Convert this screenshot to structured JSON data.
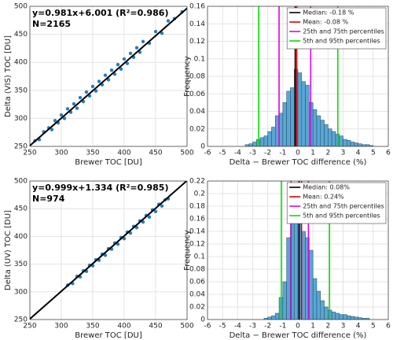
{
  "chart_data": [
    {
      "type": "scatter",
      "xlabel": "Brewer TOC [DU]",
      "ylabel": "Delta (VIS) TOC [DU]",
      "annotations": [
        "y=0.981x+6.001 (R²=0.986)",
        "N=2165"
      ],
      "xlim": [
        250,
        500
      ],
      "ylim": [
        250,
        500
      ],
      "xticks": [
        250,
        300,
        350,
        400,
        450,
        500
      ],
      "yticks": [
        250,
        300,
        350,
        400,
        450,
        500
      ],
      "grid": true,
      "color": "#2b7bbd",
      "x": [
        258,
        265,
        272,
        280,
        285,
        290,
        295,
        300,
        305,
        310,
        315,
        320,
        325,
        330,
        335,
        340,
        345,
        350,
        355,
        360,
        365,
        370,
        375,
        380,
        385,
        390,
        395,
        400,
        405,
        410,
        415,
        420,
        425,
        430,
        440,
        450,
        460,
        470,
        480,
        492
      ],
      "values": [
        260,
        262,
        276,
        283,
        280,
        296,
        292,
        306,
        300,
        317,
        311,
        326,
        318,
        337,
        330,
        347,
        340,
        357,
        349,
        366,
        360,
        377,
        369,
        386,
        379,
        396,
        388,
        406,
        398,
        416,
        409,
        426,
        418,
        437,
        434,
        455,
        452,
        474,
        478,
        490
      ],
      "fit_line": {
        "x": [
          250,
          500
        ],
        "y": [
          251.25,
          496.5
        ]
      }
    },
    {
      "type": "histogram",
      "xlabel": "Delta − Brewer TOC difference (%)",
      "ylabel": "Frequency",
      "xlim": [
        -6,
        6
      ],
      "ylim": [
        0,
        0.16
      ],
      "xticks": [
        -6,
        -5,
        -4,
        -3,
        -2,
        -1,
        0,
        1,
        2,
        3,
        4,
        5,
        6
      ],
      "yticks": [
        0,
        0.02,
        0.04,
        0.06,
        0.08,
        0.1,
        0.12,
        0.14,
        0.16
      ],
      "grid": true,
      "color": "#5aa6d2",
      "bins": [
        -3.5,
        -3.25,
        -3,
        -2.75,
        -2.5,
        -2.25,
        -2,
        -1.75,
        -1.5,
        -1.25,
        -1,
        -0.75,
        -0.5,
        -0.25,
        0,
        0.25,
        0.5,
        0.75,
        1,
        1.25,
        1.5,
        1.75,
        2,
        2.25,
        2.5,
        2.75,
        3,
        3.25,
        3.5,
        3.75,
        4,
        4.25,
        4.5,
        4.75,
        5
      ],
      "values": [
        0.002,
        0.003,
        0.005,
        0.008,
        0.01,
        0.012,
        0.017,
        0.022,
        0.035,
        0.038,
        0.05,
        0.063,
        0.067,
        0.088,
        0.084,
        0.074,
        0.07,
        0.05,
        0.042,
        0.035,
        0.03,
        0.025,
        0.02,
        0.017,
        0.014,
        0.012,
        0.008,
        0.007,
        0.005,
        0.004,
        0.003,
        0.002,
        0.002,
        0.001
      ],
      "vlines": [
        {
          "name": "Median: -0.18 %",
          "color": "#000000",
          "values": [
            -0.18
          ]
        },
        {
          "name": "Mean: -0.08 %",
          "color": "#e00000",
          "values": [
            -0.08
          ]
        },
        {
          "name": "25th and 75th percentiles",
          "color": "#e000e0",
          "values": [
            -1.25,
            0.85
          ]
        },
        {
          "name": "5th and 95th percentiles",
          "color": "#00e000",
          "values": [
            -2.6,
            2.65
          ]
        }
      ]
    },
    {
      "type": "scatter",
      "xlabel": "Brewer TOC [DU]",
      "ylabel": "Delta (UV) TOC [DU]",
      "annotations": [
        "y=0.999x+1.334 (R²=0.985)",
        "N=974"
      ],
      "xlim": [
        250,
        500
      ],
      "ylim": [
        250,
        500
      ],
      "xticks": [
        250,
        300,
        350,
        400,
        450,
        500
      ],
      "yticks": [
        250,
        300,
        350,
        400,
        450,
        500
      ],
      "grid": true,
      "color": "#2b7bbd",
      "x": [
        310,
        318,
        325,
        330,
        335,
        340,
        345,
        350,
        355,
        360,
        365,
        370,
        375,
        380,
        385,
        390,
        395,
        400,
        405,
        410,
        415,
        420,
        425,
        430,
        435,
        440,
        445,
        450,
        455,
        460,
        465,
        470
      ],
      "values": [
        312,
        315,
        328,
        327,
        338,
        337,
        348,
        347,
        358,
        357,
        368,
        366,
        378,
        377,
        388,
        386,
        398,
        396,
        408,
        406,
        418,
        416,
        428,
        426,
        438,
        435,
        448,
        445,
        458,
        455,
        466,
        468
      ],
      "fit_line": {
        "x": [
          250,
          500
        ],
        "y": [
          251.1,
          500.8
        ]
      }
    },
    {
      "type": "histogram",
      "xlabel": "Delta − Brewer TOC difference (%)",
      "ylabel": "Frequency",
      "xlim": [
        -6,
        6
      ],
      "ylim": [
        0,
        0.22
      ],
      "xticks": [
        -6,
        -5,
        -4,
        -3,
        -2,
        -1,
        0,
        1,
        2,
        3,
        4,
        5,
        6
      ],
      "yticks": [
        0,
        0.02,
        0.04,
        0.06,
        0.08,
        0.1,
        0.12,
        0.14,
        0.16,
        0.18,
        0.2,
        0.22
      ],
      "grid": true,
      "color": "#5aa6d2",
      "bins": [
        -2.25,
        -2,
        -1.75,
        -1.5,
        -1.25,
        -1,
        -0.75,
        -0.5,
        -0.25,
        0,
        0.25,
        0.5,
        0.75,
        1,
        1.25,
        1.5,
        1.75,
        2,
        2.25,
        2.5,
        2.75,
        3,
        3.25,
        3.5,
        3.75,
        4,
        4.25,
        4.5,
        4.75
      ],
      "values": [
        0.002,
        0.004,
        0.006,
        0.01,
        0.035,
        0.06,
        0.13,
        0.158,
        0.16,
        0.2,
        0.14,
        0.13,
        0.11,
        0.065,
        0.045,
        0.03,
        0.02,
        0.015,
        0.012,
        0.01,
        0.008,
        0.008,
        0.006,
        0.005,
        0.004,
        0.003,
        0.002,
        0.002
      ],
      "vlines": [
        {
          "name": "Median: 0.08%",
          "color": "#000000",
          "values": [
            0.08
          ]
        },
        {
          "name": "Mean: 0.24%",
          "color": "#e00000",
          "values": [
            0.24
          ]
        },
        {
          "name": "25th and 75th percentiles",
          "color": "#e000e0",
          "values": [
            -0.45,
            0.7
          ]
        },
        {
          "name": "5th and 95th percentiles",
          "color": "#00e000",
          "values": [
            -1.1,
            2.1
          ]
        }
      ]
    }
  ]
}
